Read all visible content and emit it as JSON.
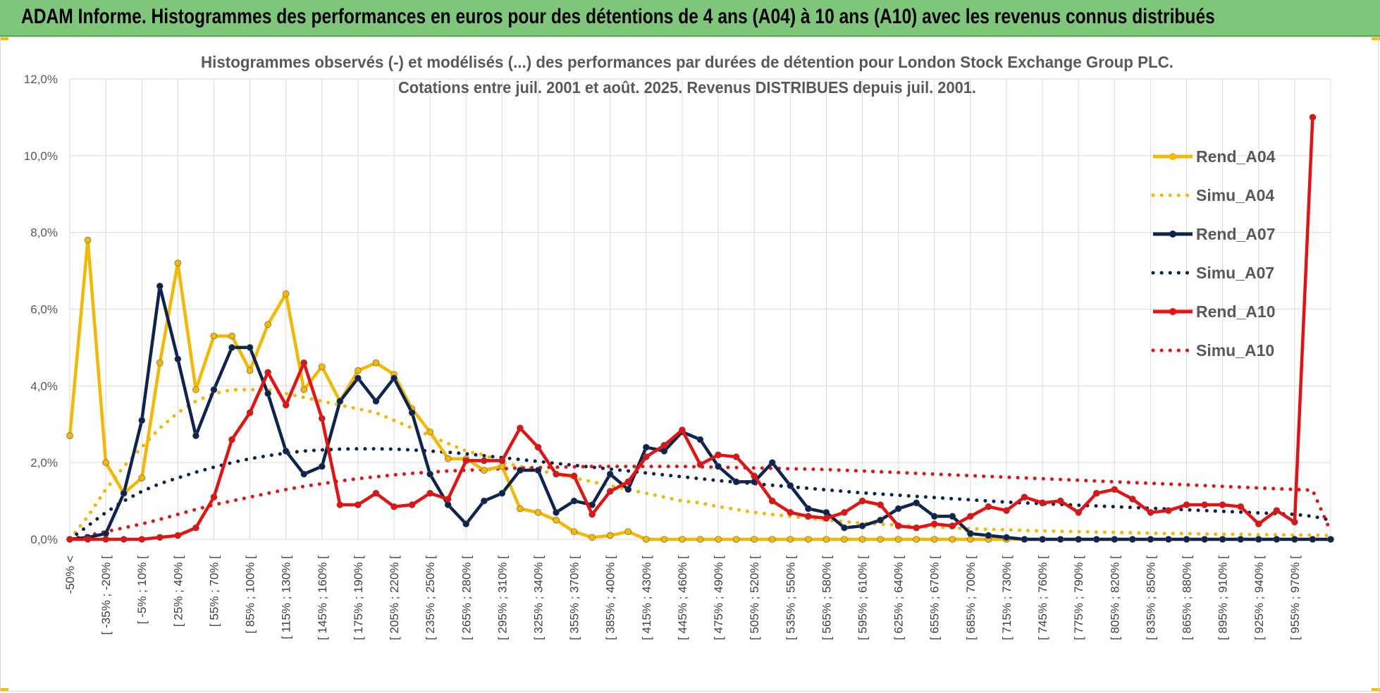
{
  "header": {
    "title": "ADAM Informe. Histogrammes des performances en euros pour des détentions de 4 ans (A04) à 10 ans (A10) avec les revenus connus distribués"
  },
  "chart_data": {
    "type": "line",
    "title": "Histogrammes observés (-) et modélisés (...) des performances par durées de détention pour London Stock Exchange Group PLC.",
    "subtitle": "Cotations entre juil. 2001 et août. 2025. Revenus DISTRIBUES depuis juil. 2001.",
    "xlabel": "",
    "ylabel": "",
    "ylim": [
      0,
      12
    ],
    "y_ticks": [
      "0,0%",
      "2,0%",
      "4,0%",
      "6,0%",
      "8,0%",
      "10,0%",
      "12,0%"
    ],
    "x_tick_labels": [
      "-50% <",
      "[ -35% ; -20% [",
      "[ -5% ; 10% [",
      "[ 25% ; 40% [",
      "[ 55% ; 70% [",
      "[ 85% ; 100% [",
      "[ 115% ; 130% [",
      "[ 145% ; 160% [",
      "[ 175% ; 190% [",
      "[ 205% ; 220% [",
      "[ 235% ; 250% [",
      "[ 265% ; 280% [",
      "[ 295% ; 310% [",
      "[ 325% ; 340% [",
      "[ 355% ; 370% [",
      "[ 385% ; 400% [",
      "[ 415% ; 430% [",
      "[ 445% ; 460% [",
      "[ 475% ; 490% [",
      "[ 505% ; 520% [",
      "[ 535% ; 550% [",
      "[ 565% ; 580% [",
      "[ 595% ; 610% [",
      "[ 625% ; 640% [",
      "[ 655% ; 670% [",
      "[ 685% ; 700% [",
      "[ 715% ; 730% [",
      "[ 745% ; 760% [",
      "[ 775% ; 790% [",
      "[ 805% ; 820% [",
      "[ 835% ; 850% [",
      "[ 865% ; 880% [",
      "[ 895% ; 910% [",
      "[ 925% ; 940% [",
      "[ 955% ; 970% ["
    ],
    "grid": true,
    "legend_position": "right",
    "series": [
      {
        "name": "Rend_A04",
        "style": "solid",
        "color": "#f5b800",
        "values": [
          2.7,
          7.8,
          2.0,
          1.2,
          1.6,
          4.6,
          7.2,
          3.9,
          5.3,
          5.3,
          4.4,
          5.6,
          6.4,
          3.9,
          4.5,
          3.6,
          4.4,
          4.6,
          4.3,
          3.4,
          2.8,
          2.1,
          2.1,
          1.8,
          1.9,
          0.8,
          0.7,
          0.5,
          0.2,
          0.05,
          0.1,
          0.2,
          0,
          0,
          0,
          0,
          0,
          0,
          0,
          0,
          0,
          0,
          0,
          0,
          0,
          0,
          0,
          0,
          0,
          0,
          0,
          0,
          0,
          0,
          0,
          0,
          0,
          0,
          0,
          0,
          0,
          0,
          0,
          0,
          0,
          0,
          0,
          0,
          0,
          0,
          0
        ]
      },
      {
        "name": "Simu_A04",
        "style": "dotted",
        "color": "#f5b800",
        "values": [
          0,
          0.6,
          1.3,
          1.9,
          2.4,
          2.9,
          3.3,
          3.6,
          3.8,
          3.9,
          3.9,
          3.9,
          3.8,
          3.7,
          3.6,
          3.5,
          3.4,
          3.3,
          3.1,
          2.9,
          2.7,
          2.5,
          2.3,
          2.2,
          2.0,
          1.9,
          1.8,
          1.7,
          1.6,
          1.5,
          1.4,
          1.3,
          1.2,
          1.1,
          1.0,
          0.95,
          0.85,
          0.78,
          0.7,
          0.65,
          0.6,
          0.55,
          0.5,
          0.46,
          0.42,
          0.4,
          0.37,
          0.34,
          0.32,
          0.3,
          0.28,
          0.26,
          0.25,
          0.23,
          0.22,
          0.21,
          0.2,
          0.19,
          0.18,
          0.17,
          0.16,
          0.15,
          0.15,
          0.14,
          0.13,
          0.13,
          0.12,
          0.12,
          0.11,
          0.11,
          0.1
        ]
      },
      {
        "name": "Rend_A07",
        "style": "solid",
        "color": "#0d2350",
        "values": [
          0,
          0.05,
          0.15,
          1.2,
          3.1,
          6.6,
          4.7,
          2.7,
          3.9,
          5.0,
          5.0,
          3.8,
          2.3,
          1.7,
          1.9,
          3.6,
          4.2,
          3.6,
          4.2,
          3.3,
          1.7,
          0.9,
          0.4,
          1.0,
          1.2,
          1.8,
          1.8,
          0.7,
          1.0,
          0.9,
          1.7,
          1.3,
          2.4,
          2.3,
          2.8,
          2.6,
          1.9,
          1.5,
          1.5,
          2.0,
          1.4,
          0.8,
          0.7,
          0.3,
          0.35,
          0.5,
          0.8,
          0.95,
          0.6,
          0.6,
          0.15,
          0.1,
          0.05,
          0,
          0,
          0,
          0,
          0,
          0,
          0,
          0,
          0,
          0,
          0,
          0,
          0,
          0,
          0,
          0,
          0,
          0
        ]
      },
      {
        "name": "Simu_A07",
        "style": "dotted",
        "color": "#0d2350",
        "values": [
          0,
          0.35,
          0.7,
          1.0,
          1.25,
          1.45,
          1.6,
          1.75,
          1.88,
          2.0,
          2.1,
          2.18,
          2.25,
          2.3,
          2.33,
          2.35,
          2.36,
          2.36,
          2.35,
          2.33,
          2.3,
          2.27,
          2.23,
          2.18,
          2.13,
          2.08,
          2.03,
          1.98,
          1.93,
          1.88,
          1.83,
          1.78,
          1.73,
          1.68,
          1.63,
          1.58,
          1.53,
          1.49,
          1.45,
          1.41,
          1.37,
          1.33,
          1.29,
          1.25,
          1.21,
          1.18,
          1.15,
          1.12,
          1.09,
          1.06,
          1.03,
          1.0,
          0.97,
          0.95,
          0.93,
          0.91,
          0.89,
          0.87,
          0.85,
          0.83,
          0.81,
          0.79,
          0.77,
          0.75,
          0.73,
          0.71,
          0.69,
          0.67,
          0.65,
          0.6,
          0.5
        ]
      },
      {
        "name": "Rend_A10",
        "style": "solid",
        "color": "#e81010",
        "values": [
          0,
          0,
          0,
          0,
          0,
          0.05,
          0.1,
          0.3,
          1.1,
          2.6,
          3.3,
          4.35,
          3.5,
          4.6,
          3.15,
          0.9,
          0.9,
          1.2,
          0.85,
          0.9,
          1.2,
          1.05,
          2.05,
          2.05,
          2.05,
          2.9,
          2.4,
          1.7,
          1.65,
          0.65,
          1.25,
          1.5,
          2.15,
          2.45,
          2.85,
          1.95,
          2.2,
          2.15,
          1.65,
          1.0,
          0.7,
          0.6,
          0.55,
          0.7,
          1.0,
          0.9,
          0.35,
          0.3,
          0.4,
          0.35,
          0.6,
          0.85,
          0.75,
          1.1,
          0.95,
          1.0,
          0.7,
          1.2,
          1.3,
          1.05,
          0.7,
          0.75,
          0.9,
          0.9,
          0.9,
          0.85,
          0.4,
          0.75,
          0.45,
          11.0
        ]
      },
      {
        "name": "Simu_A10",
        "style": "dotted",
        "color": "#e81010",
        "values": [
          0,
          0.1,
          0.2,
          0.3,
          0.4,
          0.52,
          0.65,
          0.78,
          0.9,
          1.0,
          1.1,
          1.2,
          1.3,
          1.38,
          1.45,
          1.52,
          1.58,
          1.63,
          1.68,
          1.72,
          1.75,
          1.78,
          1.8,
          1.82,
          1.84,
          1.86,
          1.87,
          1.88,
          1.89,
          1.9,
          1.9,
          1.9,
          1.9,
          1.9,
          1.9,
          1.89,
          1.88,
          1.87,
          1.86,
          1.85,
          1.84,
          1.83,
          1.82,
          1.8,
          1.78,
          1.76,
          1.74,
          1.72,
          1.7,
          1.68,
          1.66,
          1.64,
          1.62,
          1.6,
          1.58,
          1.56,
          1.54,
          1.52,
          1.5,
          1.48,
          1.46,
          1.44,
          1.42,
          1.4,
          1.38,
          1.36,
          1.34,
          1.32,
          1.3,
          1.28,
          0.2
        ]
      }
    ]
  }
}
